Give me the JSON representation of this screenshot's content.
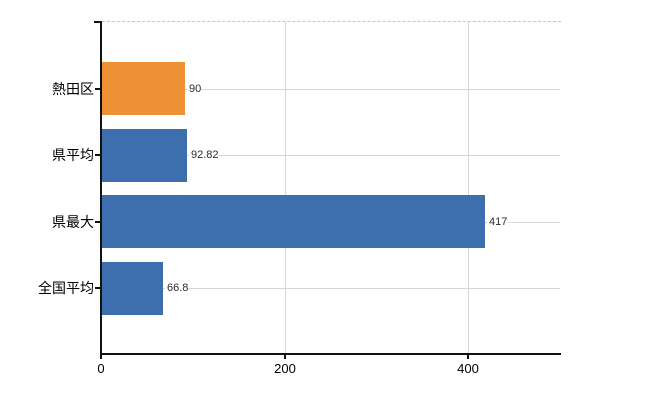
{
  "chart_data": {
    "type": "bar",
    "orientation": "horizontal",
    "title": "",
    "xlabel": "",
    "ylabel": "",
    "categories": [
      "熱田区",
      "県平均",
      "県最大",
      "全国平均"
    ],
    "values": [
      90,
      92.82,
      417,
      66.8
    ],
    "value_labels": [
      "90",
      "92.82",
      "417",
      "66.8"
    ],
    "bar_colors": [
      "#ee9136",
      "#3d6ead",
      "#3d6ead",
      "#3d6ead"
    ],
    "xlim": [
      0,
      500
    ],
    "x_ticks": [
      0,
      200,
      400
    ],
    "x_tick_labels": [
      "0",
      "200",
      "400"
    ],
    "grid": true,
    "legend": false,
    "colors": {
      "orange": "#ee9136",
      "blue": "#3d6ead",
      "gridline": "#d6d6d6",
      "top_border": "#c6c6c6",
      "axis": "#111111",
      "value_text": "#2b2b2b",
      "label_text": "#000000",
      "background": "#ffffff"
    }
  }
}
